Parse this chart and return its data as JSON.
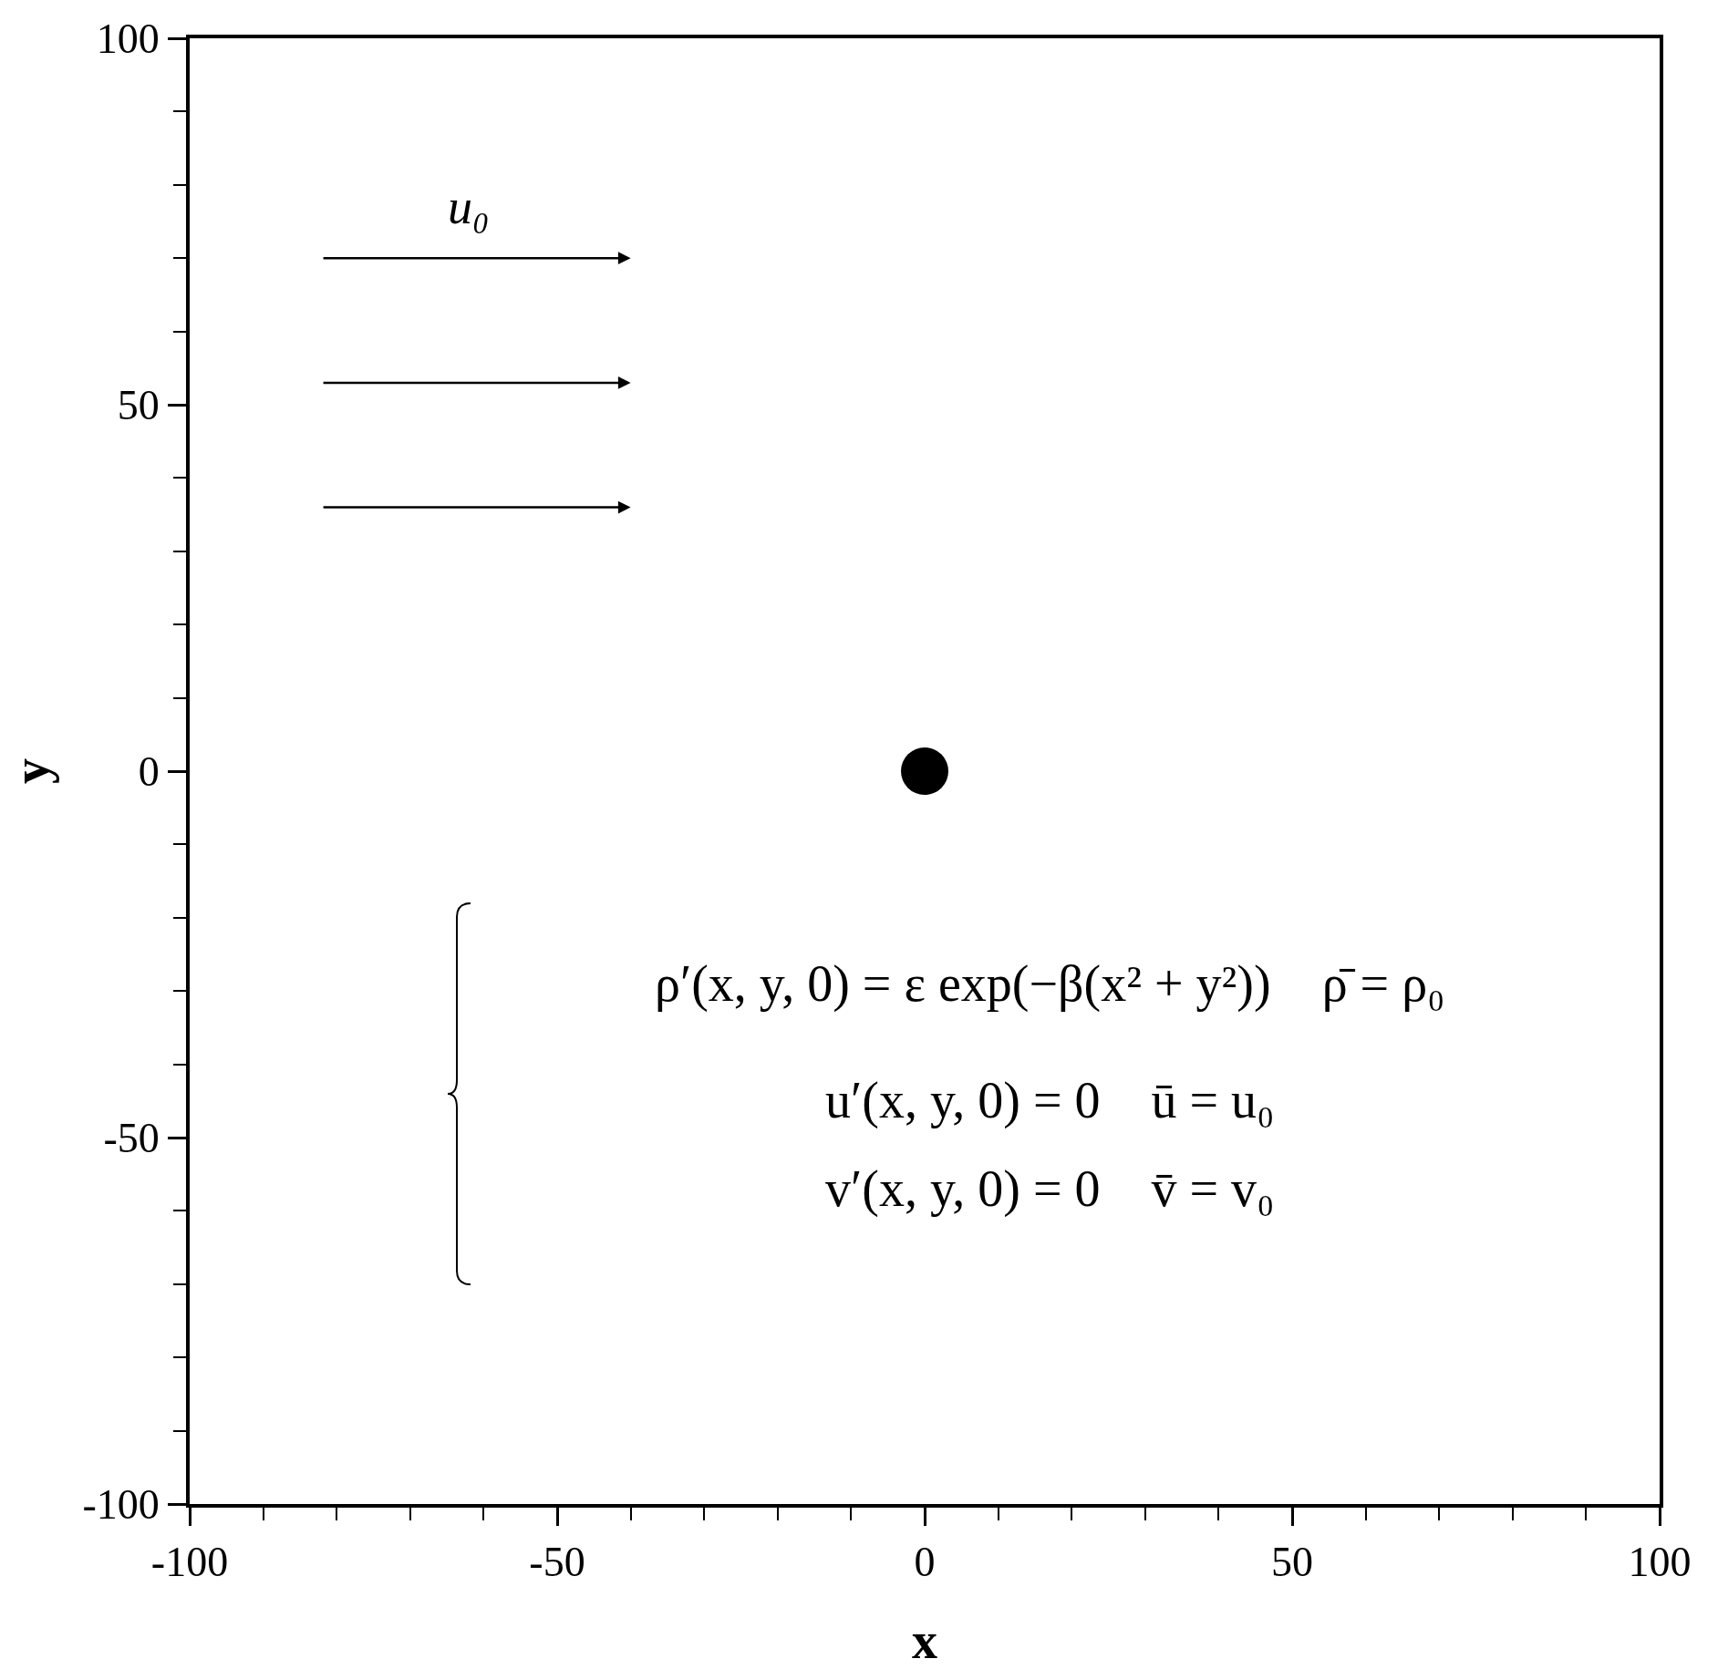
{
  "chart_data": {
    "type": "scatter",
    "xlabel": "x",
    "ylabel": "y",
    "x": [
      0
    ],
    "values": [
      0
    ],
    "color": "#000000",
    "marker": "circle",
    "grid": false,
    "xlim": [
      -100,
      100
    ],
    "ylim": [
      -100,
      100
    ],
    "xticks": [
      -100,
      {
        "value": -90,
        "label": null
      },
      {
        "value": -80,
        "label": null
      },
      {
        "value": -70,
        "label": null
      },
      {
        "value": -60,
        "label": null
      },
      -50,
      {
        "value": -40,
        "label": null
      },
      {
        "value": -30,
        "label": null
      },
      {
        "value": -20,
        "label": null
      },
      {
        "value": -10,
        "label": null
      },
      0,
      {
        "value": 10,
        "label": null
      },
      {
        "value": 20,
        "label": null
      },
      {
        "value": 30,
        "label": null
      },
      {
        "value": 40,
        "label": null
      },
      50,
      {
        "value": 60,
        "label": null
      },
      {
        "value": 70,
        "label": null
      },
      {
        "value": 80,
        "label": null
      },
      {
        "value": 90,
        "label": null
      },
      100
    ],
    "yticks": [
      -100,
      {
        "value": -90,
        "label": null
      },
      {
        "value": -80,
        "label": null
      },
      {
        "value": -70,
        "label": null
      },
      {
        "value": -60,
        "label": null
      },
      -50,
      {
        "value": -40,
        "label": null
      },
      {
        "value": -30,
        "label": null
      },
      {
        "value": -20,
        "label": null
      },
      {
        "value": -10,
        "label": null
      },
      0,
      {
        "value": 10,
        "label": null
      },
      {
        "value": 20,
        "label": null
      },
      {
        "value": 30,
        "label": null
      },
      {
        "value": 40,
        "label": null
      },
      50,
      {
        "value": 60,
        "label": null
      },
      {
        "value": 70,
        "label": null
      },
      {
        "value": 80,
        "label": null
      },
      {
        "value": 90,
        "label": null
      },
      100
    ],
    "annotations": [
      "u₀",
      "ρ′(x, y, 0) = ε exp(−β(x² + y²))    ρ̄ = ρ₀",
      "u′(x, y, 0) = 0    ū = u₀",
      "v′(x, y, 0) = 0    v̄ = v₀"
    ]
  }
}
